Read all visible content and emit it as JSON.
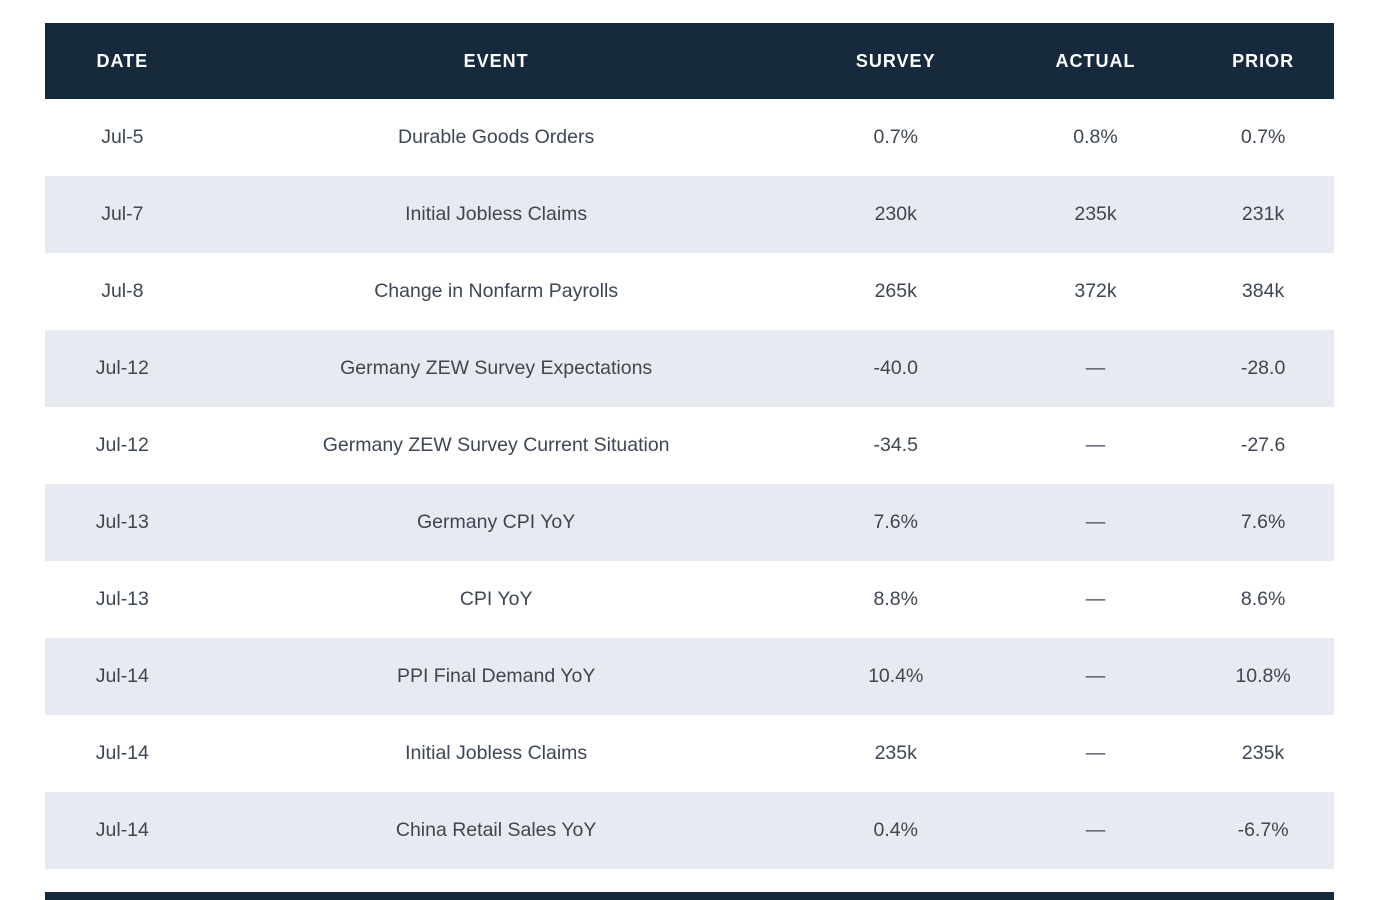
{
  "table": {
    "columns": [
      "DATE",
      "EVENT",
      "SURVEY",
      "ACTUAL",
      "PRIOR"
    ],
    "rows": [
      {
        "date": "Jul-5",
        "event": "Durable Goods Orders",
        "survey": "0.7%",
        "actual": "0.8%",
        "prior": "0.7%"
      },
      {
        "date": "Jul-7",
        "event": "Initial Jobless Claims",
        "survey": "230k",
        "actual": "235k",
        "prior": "231k"
      },
      {
        "date": "Jul-8",
        "event": "Change in Nonfarm Payrolls",
        "survey": "265k",
        "actual": "372k",
        "prior": "384k"
      },
      {
        "date": "Jul-12",
        "event": "Germany ZEW Survey Expectations",
        "survey": "-40.0",
        "actual": "—",
        "prior": "-28.0"
      },
      {
        "date": "Jul-12",
        "event": "Germany ZEW Survey Current Situation",
        "survey": "-34.5",
        "actual": "—",
        "prior": "-27.6"
      },
      {
        "date": "Jul-13",
        "event": "Germany CPI YoY",
        "survey": "7.6%",
        "actual": "—",
        "prior": "7.6%"
      },
      {
        "date": "Jul-13",
        "event": "CPI YoY",
        "survey": "8.8%",
        "actual": "—",
        "prior": "8.6%"
      },
      {
        "date": "Jul-14",
        "event": "PPI Final Demand YoY",
        "survey": "10.4%",
        "actual": "—",
        "prior": "10.8%"
      },
      {
        "date": "Jul-14",
        "event": "Initial Jobless Claims",
        "survey": "235k",
        "actual": "—",
        "prior": "235k"
      },
      {
        "date": "Jul-14",
        "event": "China Retail Sales YoY",
        "survey": "0.4%",
        "actual": "—",
        "prior": "-6.7%"
      }
    ]
  },
  "colors": {
    "header_bg": "#17293d",
    "row_alt_bg": "#e8eaf2",
    "header_text": "#ffffff",
    "body_text": "#3d4654"
  }
}
